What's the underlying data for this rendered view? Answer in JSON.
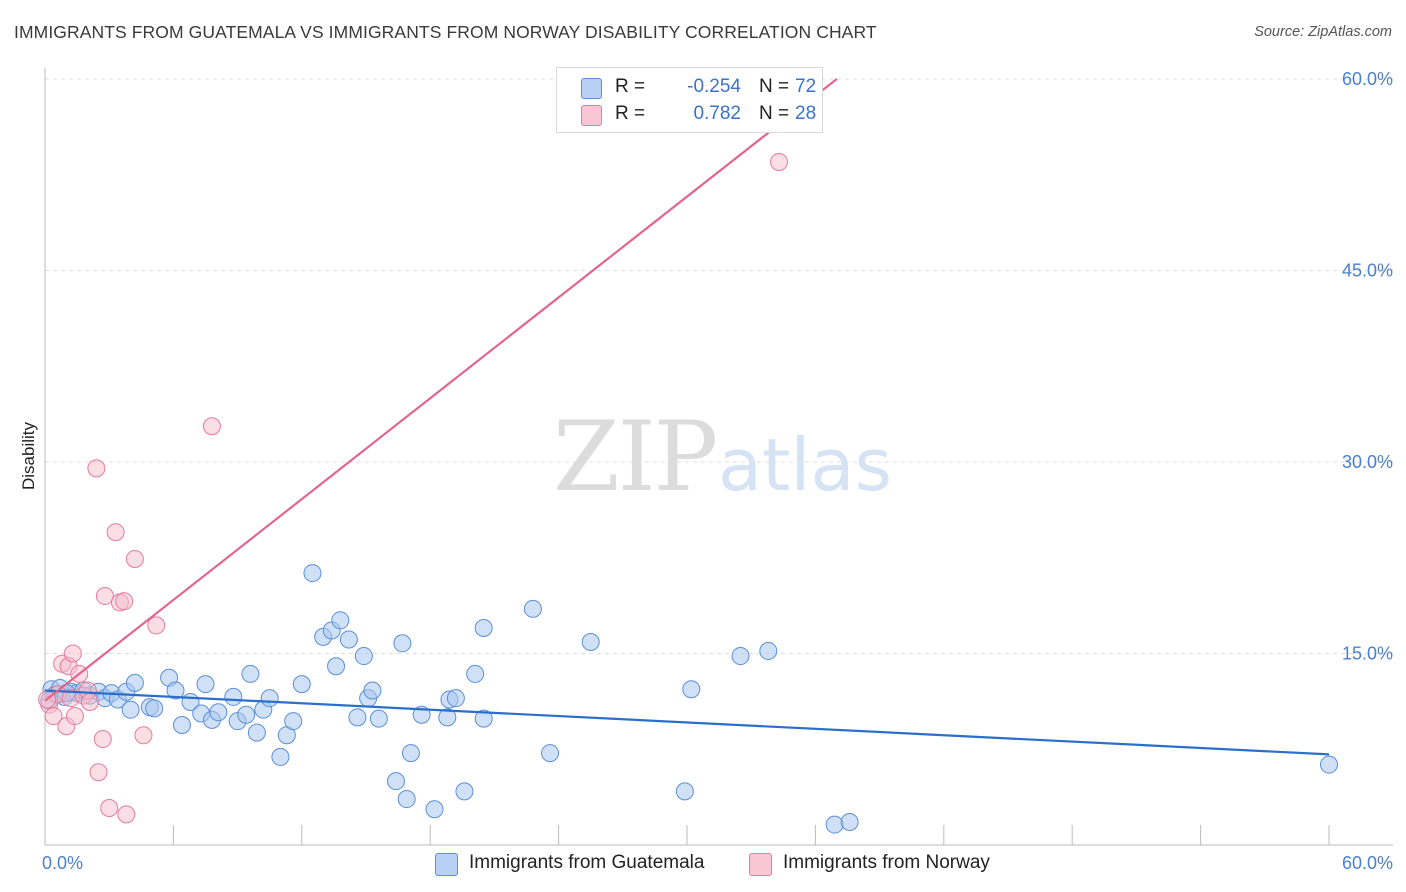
{
  "title": "IMMIGRANTS FROM GUATEMALA VS IMMIGRANTS FROM NORWAY DISABILITY CORRELATION CHART",
  "source": "Source: ZipAtlas.com",
  "watermark": {
    "zip": "ZIP",
    "atlas": "atlas"
  },
  "legend": {
    "rows": [
      {
        "r_label": "R =",
        "r_value": "-0.254",
        "n_label": "N =",
        "n_value": "72"
      },
      {
        "r_label": "R =",
        "r_value": "0.782",
        "n_label": "N =",
        "n_value": "28"
      }
    ]
  },
  "bottom_legend": [
    "Immigrants from Guatemala",
    "Immigrants from Norway"
  ],
  "colors": {
    "guatemala_fill": "#a9c8f0",
    "guatemala_stroke": "#5b8fd6",
    "guatemala_line": "#2a6fc9",
    "norway_fill": "#f7bccd",
    "norway_stroke": "#e57c9c",
    "norway_line": "#e0668f",
    "grid": "#dddddd",
    "tick_text": "#4a7fd0"
  },
  "chart_data": {
    "type": "scatter",
    "title": "IMMIGRANTS FROM GUATEMALA VS IMMIGRANTS FROM NORWAY DISABILITY CORRELATION CHART",
    "xlabel": "",
    "ylabel": "Disability",
    "xlim": [
      0,
      60
    ],
    "ylim": [
      0,
      60
    ],
    "x_ticks_labels": [
      "0.0%",
      "60.0%"
    ],
    "y_ticks": [
      15,
      30,
      45,
      60
    ],
    "y_ticks_labels": [
      "15.0%",
      "30.0%",
      "45.0%",
      "60.0%"
    ],
    "grid": true,
    "legend_position": "top-center",
    "series": [
      {
        "name": "Immigrants from Guatemala",
        "R": -0.254,
        "N": 72,
        "trend": {
          "x": [
            0.0,
            60.0
          ],
          "y": [
            12.1,
            7.1
          ]
        },
        "points": [
          [
            0.3,
            12.2
          ],
          [
            0.5,
            11.8
          ],
          [
            0.7,
            12.3
          ],
          [
            0.9,
            11.6
          ],
          [
            1.2,
            12.0
          ],
          [
            1.5,
            11.9
          ],
          [
            1.8,
            12.1
          ],
          [
            2.1,
            11.7
          ],
          [
            2.5,
            12.0
          ],
          [
            2.8,
            11.5
          ],
          [
            3.1,
            11.9
          ],
          [
            3.4,
            11.4
          ],
          [
            3.8,
            12.0
          ],
          [
            4.0,
            10.6
          ],
          [
            4.2,
            12.7
          ],
          [
            4.9,
            10.8
          ],
          [
            5.1,
            10.7
          ],
          [
            5.8,
            13.1
          ],
          [
            6.1,
            12.1
          ],
          [
            6.4,
            9.4
          ],
          [
            6.8,
            11.2
          ],
          [
            7.3,
            10.3
          ],
          [
            7.5,
            12.6
          ],
          [
            7.8,
            9.8
          ],
          [
            8.1,
            10.4
          ],
          [
            8.8,
            11.6
          ],
          [
            9.0,
            9.7
          ],
          [
            9.4,
            10.2
          ],
          [
            9.6,
            13.4
          ],
          [
            9.9,
            8.8
          ],
          [
            10.2,
            10.6
          ],
          [
            10.5,
            11.5
          ],
          [
            11.0,
            6.9
          ],
          [
            11.3,
            8.6
          ],
          [
            11.6,
            9.7
          ],
          [
            12.0,
            12.6
          ],
          [
            12.5,
            21.3
          ],
          [
            13.0,
            16.3
          ],
          [
            13.4,
            16.8
          ],
          [
            13.6,
            14.0
          ],
          [
            13.8,
            17.6
          ],
          [
            14.2,
            16.1
          ],
          [
            14.6,
            10.0
          ],
          [
            14.9,
            14.8
          ],
          [
            15.1,
            11.5
          ],
          [
            15.3,
            12.1
          ],
          [
            15.6,
            9.9
          ],
          [
            16.4,
            5.0
          ],
          [
            16.7,
            15.8
          ],
          [
            16.9,
            3.6
          ],
          [
            17.1,
            7.2
          ],
          [
            17.6,
            10.2
          ],
          [
            18.2,
            2.8
          ],
          [
            18.8,
            10.0
          ],
          [
            18.9,
            11.4
          ],
          [
            19.2,
            11.5
          ],
          [
            19.6,
            4.2
          ],
          [
            20.1,
            13.4
          ],
          [
            20.5,
            9.9
          ],
          [
            20.5,
            17.0
          ],
          [
            22.8,
            18.5
          ],
          [
            23.6,
            7.2
          ],
          [
            25.5,
            15.9
          ],
          [
            29.9,
            4.2
          ],
          [
            30.2,
            12.2
          ],
          [
            32.5,
            14.8
          ],
          [
            33.8,
            15.2
          ],
          [
            36.9,
            1.6
          ],
          [
            37.6,
            1.8
          ],
          [
            60.0,
            6.3
          ],
          [
            0.2,
            11.3
          ],
          [
            1.0,
            11.9
          ]
        ]
      },
      {
        "name": "Immigrants from Norway",
        "R": 0.782,
        "N": 28,
        "trend": {
          "x": [
            0.0,
            37.0
          ],
          "y": [
            11.3,
            60.0
          ]
        },
        "points": [
          [
            0.2,
            11.0
          ],
          [
            0.4,
            10.1
          ],
          [
            0.6,
            11.8
          ],
          [
            0.8,
            14.2
          ],
          [
            1.0,
            9.3
          ],
          [
            1.1,
            14.0
          ],
          [
            1.2,
            11.5
          ],
          [
            1.3,
            15.0
          ],
          [
            1.4,
            10.1
          ],
          [
            1.6,
            13.4
          ],
          [
            1.8,
            11.7
          ],
          [
            2.0,
            12.1
          ],
          [
            2.1,
            11.2
          ],
          [
            2.4,
            29.5
          ],
          [
            2.5,
            5.7
          ],
          [
            2.7,
            8.3
          ],
          [
            2.8,
            19.5
          ],
          [
            3.0,
            2.9
          ],
          [
            3.3,
            24.5
          ],
          [
            3.5,
            19.0
          ],
          [
            3.7,
            19.1
          ],
          [
            3.8,
            2.4
          ],
          [
            4.2,
            22.4
          ],
          [
            4.6,
            8.6
          ],
          [
            5.2,
            17.2
          ],
          [
            7.8,
            32.8
          ],
          [
            34.3,
            53.5
          ],
          [
            0.1,
            11.4
          ]
        ]
      }
    ]
  }
}
